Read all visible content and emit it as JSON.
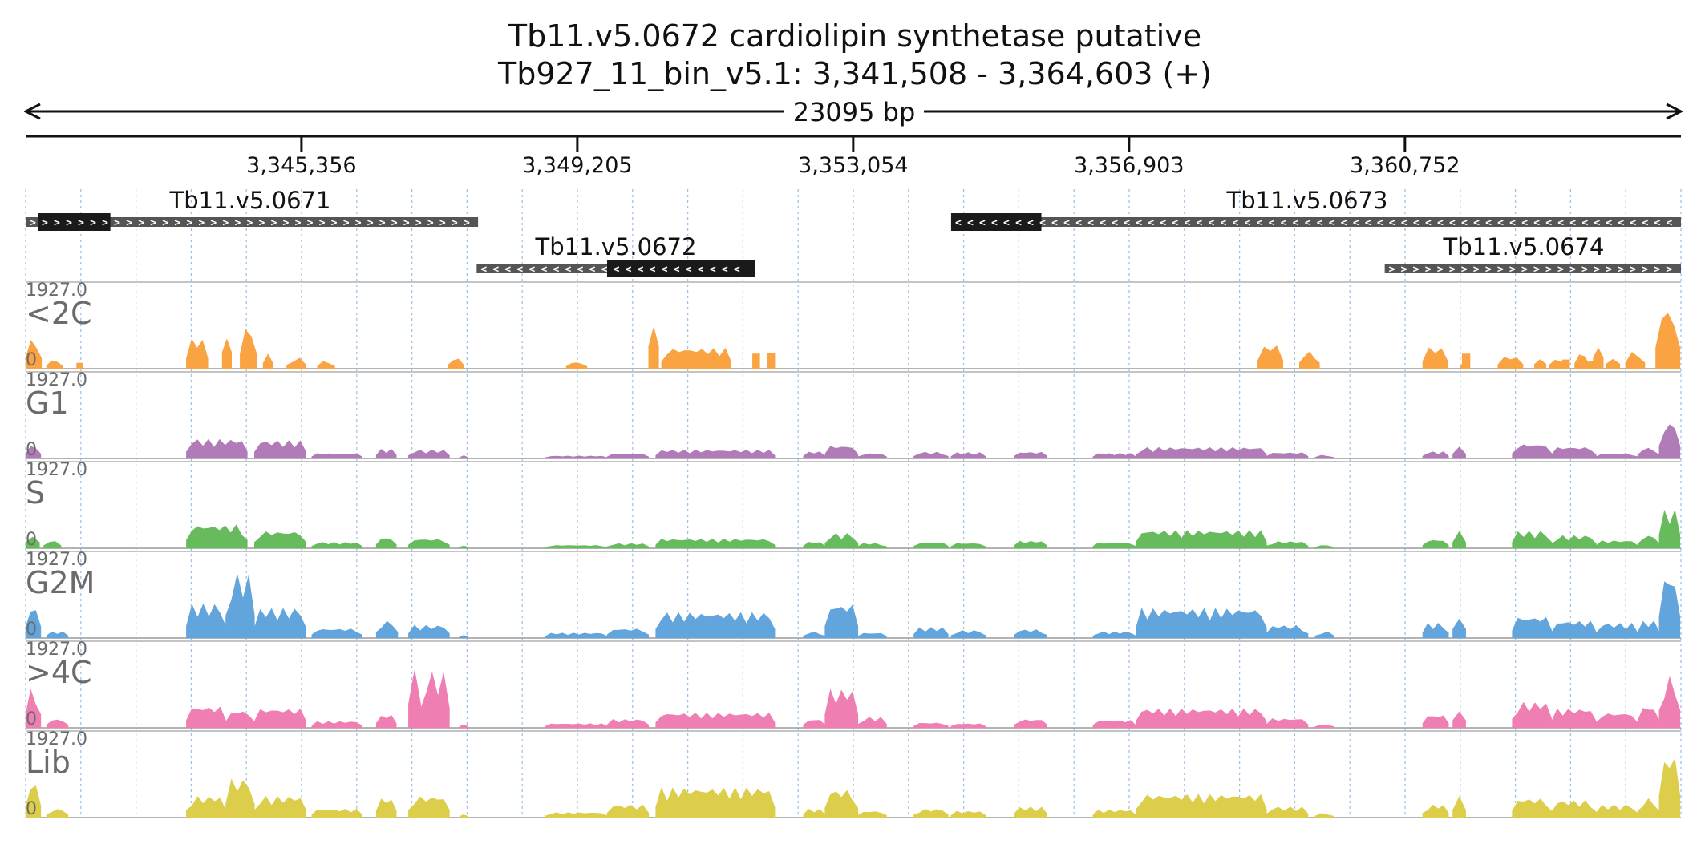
{
  "title_line1": "Tb11.v5.0672  cardiolipin synthetase  putative",
  "title_line2": "Tb927_11_bin_v5.1: 3,341,508 - 3,364,603 (+)",
  "span_label": "23095 bp",
  "colors": {
    "<2C": "#f9a342",
    "G1": "#b07bb7",
    "S": "#67bb5c",
    "G2M": "#62a5dc",
    ">4C": "#ef7fb2",
    "Lib": "#dccd4a",
    "axis": "#111111",
    "grid": "#9ec3e6",
    "gene_thick": "#1a1a1a",
    "gene_thin": "#555555",
    "track_label": "#6b6b6b"
  },
  "chart_data": {
    "type": "area",
    "genomic_range": [
      3341508,
      3364603
    ],
    "ruler_ticks": [
      {
        "pos": 3345356,
        "label": "3,345,356"
      },
      {
        "pos": 3349205,
        "label": "3,349,205"
      },
      {
        "pos": 3353054,
        "label": "3,353,054"
      },
      {
        "pos": 3356903,
        "label": "3,356,903"
      },
      {
        "pos": 3360752,
        "label": "3,360,752"
      }
    ],
    "genes": [
      {
        "name": "Tb11.v5.0671",
        "start": 3341508,
        "end": 3347820,
        "cds_start": 3341680,
        "cds_end": 3342690,
        "strand": "+",
        "row": 0
      },
      {
        "name": "Tb11.v5.0672",
        "start": 3347800,
        "end": 3351680,
        "cds_start": 3349620,
        "cds_end": 3351680,
        "strand": "-",
        "row": 1
      },
      {
        "name": "Tb11.v5.0673",
        "start": 3354420,
        "end": 3364603,
        "cds_start": 3354420,
        "cds_end": 3355680,
        "strand": "-",
        "row": 0
      },
      {
        "name": "Tb11.v5.0674",
        "start": 3360470,
        "end": 3364603,
        "cds_start": 3360470,
        "cds_end": 3360470,
        "strand": "+",
        "row": 1
      }
    ],
    "tracks": [
      {
        "name": "<2C",
        "ymin": "0",
        "ymax": "1927.0",
        "peaks": [
          [
            3341508,
            3341730,
            700
          ],
          [
            3341800,
            3342020,
            200
          ],
          [
            3342220,
            3342300,
            380
          ],
          [
            3343750,
            3344050,
            700
          ],
          [
            3344250,
            3344380,
            1100
          ],
          [
            3344500,
            3344730,
            1000
          ],
          [
            3344820,
            3344960,
            350
          ],
          [
            3345150,
            3345420,
            250
          ],
          [
            3345580,
            3345820,
            180
          ],
          [
            3347400,
            3347620,
            250
          ],
          [
            3349050,
            3349340,
            150
          ],
          [
            3350200,
            3350340,
            1500
          ],
          [
            3350380,
            3351350,
            480
          ],
          [
            3351650,
            3351750,
            1000
          ],
          [
            3351850,
            3351960,
            1050
          ],
          [
            3358700,
            3359050,
            550
          ],
          [
            3359280,
            3359560,
            400
          ],
          [
            3361000,
            3361350,
            500
          ],
          [
            3361550,
            3361660,
            1000
          ],
          [
            3362050,
            3362400,
            280
          ],
          [
            3362560,
            3362720,
            300
          ],
          [
            3363120,
            3363320,
            350
          ],
          [
            3363560,
            3363750,
            320
          ],
          [
            3363830,
            3364100,
            400
          ],
          [
            3361520,
            3361580,
            260
          ],
          [
            3362760,
            3363020,
            220
          ],
          [
            3363250,
            3363450,
            200
          ],
          [
            3362950,
            3363050,
            600
          ],
          [
            3363380,
            3363520,
            750
          ],
          [
            3364250,
            3364590,
            1400
          ]
        ]
      },
      {
        "name": "G1",
        "ymin": "0",
        "ymax": "1927.0",
        "peaks": [
          [
            3341508,
            3341720,
            300
          ],
          [
            3343750,
            3344600,
            450
          ],
          [
            3344700,
            3345420,
            420
          ],
          [
            3345500,
            3346200,
            120
          ],
          [
            3346400,
            3346680,
            220
          ],
          [
            3346850,
            3347420,
            200
          ],
          [
            3347560,
            3347680,
            70
          ],
          [
            3348760,
            3349620,
            60
          ],
          [
            3349620,
            3350200,
            110
          ],
          [
            3350300,
            3351960,
            200
          ],
          [
            3352360,
            3352660,
            160
          ],
          [
            3352660,
            3353120,
            300
          ],
          [
            3353120,
            3353520,
            120
          ],
          [
            3353900,
            3354380,
            150
          ],
          [
            3354420,
            3354900,
            140
          ],
          [
            3355300,
            3355760,
            150
          ],
          [
            3356400,
            3357000,
            120
          ],
          [
            3357000,
            3358820,
            260
          ],
          [
            3358820,
            3359400,
            140
          ],
          [
            3359500,
            3359760,
            80
          ],
          [
            3361000,
            3361360,
            160
          ],
          [
            3361420,
            3361600,
            300
          ],
          [
            3362250,
            3362800,
            340
          ],
          [
            3362800,
            3363420,
            270
          ],
          [
            3363420,
            3364000,
            120
          ],
          [
            3364000,
            3364300,
            250
          ],
          [
            3364300,
            3364590,
            850
          ]
        ]
      },
      {
        "name": "S",
        "ymin": "0",
        "ymax": "1927.0",
        "peaks": [
          [
            3341508,
            3341700,
            400
          ],
          [
            3341760,
            3342000,
            180
          ],
          [
            3343750,
            3344600,
            550
          ],
          [
            3344700,
            3345420,
            400
          ],
          [
            3345500,
            3346200,
            140
          ],
          [
            3346400,
            3346680,
            250
          ],
          [
            3346850,
            3347420,
            220
          ],
          [
            3347560,
            3347680,
            80
          ],
          [
            3348760,
            3349620,
            70
          ],
          [
            3349620,
            3350200,
            110
          ],
          [
            3350300,
            3351960,
            220
          ],
          [
            3352360,
            3352660,
            150
          ],
          [
            3352660,
            3353120,
            350
          ],
          [
            3353120,
            3353520,
            120
          ],
          [
            3353900,
            3354380,
            140
          ],
          [
            3354420,
            3354900,
            120
          ],
          [
            3355300,
            3355760,
            170
          ],
          [
            3356400,
            3357000,
            130
          ],
          [
            3357000,
            3358820,
            420
          ],
          [
            3358820,
            3359400,
            160
          ],
          [
            3359500,
            3359760,
            70
          ],
          [
            3361000,
            3361360,
            200
          ],
          [
            3361420,
            3361600,
            400
          ],
          [
            3362250,
            3362800,
            400
          ],
          [
            3362800,
            3363420,
            300
          ],
          [
            3363420,
            3364000,
            180
          ],
          [
            3364000,
            3364300,
            300
          ],
          [
            3364300,
            3364590,
            900
          ]
        ]
      },
      {
        "name": "G2M",
        "ymin": "0",
        "ymax": "1927.0",
        "peaks": [
          [
            3341508,
            3341720,
            750
          ],
          [
            3341800,
            3342100,
            150
          ],
          [
            3343750,
            3344300,
            800
          ],
          [
            3344300,
            3344700,
            1500
          ],
          [
            3344700,
            3345420,
            700
          ],
          [
            3345500,
            3346200,
            220
          ],
          [
            3346400,
            3346700,
            400
          ],
          [
            3346850,
            3347420,
            300
          ],
          [
            3347560,
            3347680,
            80
          ],
          [
            3348760,
            3349620,
            120
          ],
          [
            3349620,
            3350200,
            220
          ],
          [
            3350300,
            3351960,
            600
          ],
          [
            3352360,
            3352660,
            150
          ],
          [
            3352660,
            3353120,
            800
          ],
          [
            3353120,
            3353520,
            120
          ],
          [
            3353900,
            3354380,
            250
          ],
          [
            3354420,
            3354900,
            180
          ],
          [
            3355300,
            3355760,
            200
          ],
          [
            3356400,
            3357000,
            150
          ],
          [
            3357000,
            3358820,
            700
          ],
          [
            3358820,
            3359400,
            300
          ],
          [
            3359500,
            3359760,
            150
          ],
          [
            3361000,
            3361360,
            350
          ],
          [
            3361420,
            3361600,
            600
          ],
          [
            3362250,
            3362800,
            500
          ],
          [
            3362800,
            3363420,
            400
          ],
          [
            3363420,
            3364000,
            350
          ],
          [
            3364000,
            3364300,
            400
          ],
          [
            3364300,
            3364590,
            1450
          ]
        ]
      },
      {
        "name": ">4C",
        "ymin": "0",
        "ymax": "1927.0",
        "peaks": [
          [
            3341508,
            3341720,
            900
          ],
          [
            3341800,
            3342100,
            200
          ],
          [
            3343750,
            3344300,
            500
          ],
          [
            3344300,
            3344700,
            400
          ],
          [
            3344700,
            3345420,
            450
          ],
          [
            3345500,
            3346200,
            150
          ],
          [
            3346400,
            3346680,
            300
          ],
          [
            3346850,
            3347020,
            1600
          ],
          [
            3347020,
            3347420,
            1300
          ],
          [
            3347560,
            3347680,
            80
          ],
          [
            3348760,
            3349620,
            100
          ],
          [
            3349620,
            3350200,
            200
          ],
          [
            3350300,
            3351960,
            350
          ],
          [
            3352360,
            3352660,
            200
          ],
          [
            3352660,
            3353120,
            900
          ],
          [
            3353120,
            3353520,
            250
          ],
          [
            3353900,
            3354380,
            120
          ],
          [
            3354420,
            3354900,
            100
          ],
          [
            3355300,
            3355760,
            200
          ],
          [
            3356400,
            3357000,
            180
          ],
          [
            3357000,
            3358820,
            450
          ],
          [
            3358820,
            3359400,
            220
          ],
          [
            3359500,
            3359760,
            80
          ],
          [
            3361000,
            3361360,
            300
          ],
          [
            3361420,
            3361600,
            500
          ],
          [
            3362250,
            3362800,
            600
          ],
          [
            3362800,
            3363420,
            450
          ],
          [
            3363420,
            3364000,
            350
          ],
          [
            3364000,
            3364300,
            500
          ],
          [
            3364300,
            3364590,
            1200
          ]
        ]
      },
      {
        "name": "Lib",
        "ymin": "0",
        "ymax": "1927.0",
        "peaks": [
          [
            3341508,
            3341720,
            800
          ],
          [
            3341800,
            3342100,
            200
          ],
          [
            3343750,
            3344300,
            500
          ],
          [
            3344300,
            3344700,
            900
          ],
          [
            3344700,
            3345420,
            500
          ],
          [
            3345500,
            3346200,
            200
          ],
          [
            3346400,
            3346680,
            450
          ],
          [
            3346850,
            3347420,
            500
          ],
          [
            3347560,
            3347680,
            80
          ],
          [
            3348760,
            3349620,
            120
          ],
          [
            3349620,
            3350200,
            300
          ],
          [
            3350300,
            3351960,
            700
          ],
          [
            3352360,
            3352660,
            200
          ],
          [
            3352660,
            3353120,
            650
          ],
          [
            3353120,
            3353520,
            150
          ],
          [
            3353900,
            3354380,
            200
          ],
          [
            3354420,
            3354900,
            150
          ],
          [
            3355300,
            3355760,
            250
          ],
          [
            3356400,
            3357000,
            180
          ],
          [
            3357000,
            3358820,
            550
          ],
          [
            3358820,
            3359400,
            250
          ],
          [
            3359500,
            3359760,
            100
          ],
          [
            3361000,
            3361360,
            300
          ],
          [
            3361420,
            3361600,
            500
          ],
          [
            3362250,
            3362800,
            450
          ],
          [
            3362800,
            3363420,
            400
          ],
          [
            3363420,
            3364000,
            300
          ],
          [
            3364000,
            3364300,
            450
          ],
          [
            3364300,
            3364590,
            1450
          ]
        ]
      }
    ]
  }
}
